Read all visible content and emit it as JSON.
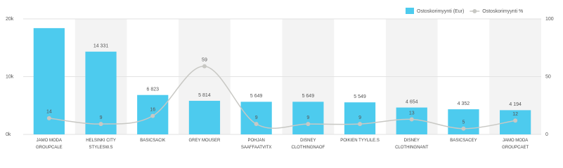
{
  "chart_data": {
    "type": "bar_line",
    "categories": [
      "JAMO MODA GROUPCALE",
      "HELSINKI CITY STYLESW.S",
      "BASICSACIK",
      "GREY MOUSER",
      "POHJAN SAAFFAATVITX",
      "DISNEY CLOTHINGNAOF",
      "POIKIEN TYYLILE.S",
      "DISNEY CLOTHINGNANT",
      "BASICSACEY",
      "JAMO MODA GROUPCAET"
    ],
    "series": [
      {
        "name": "Ostoskorimyynti (Eur)",
        "color": "#4dcbee",
        "type": "bar",
        "values": [
          18400,
          14331,
          6823,
          5814,
          5649,
          5649,
          5549,
          4654,
          4352,
          4194
        ],
        "value_labels": [
          null,
          "14 331",
          "6 823",
          "5 814",
          "5 649",
          "5 649",
          "5 549",
          "4 654",
          "4 352",
          "4 194"
        ]
      },
      {
        "name": "Ostoskorimyynti %",
        "color": "#c8c8c4",
        "type": "line",
        "axis": "y2",
        "values": [
          14,
          9,
          16,
          59,
          9,
          9,
          9,
          13,
          5,
          12
        ]
      }
    ],
    "ylim": [
      0,
      20000
    ],
    "yticks": [
      {
        "value": 0,
        "label": "0k"
      },
      {
        "value": 10000,
        "label": "10k"
      },
      {
        "value": 20000,
        "label": "20k"
      }
    ],
    "y2lim": [
      0,
      100
    ],
    "y2ticks": [
      0,
      50,
      100
    ],
    "band_shading": true
  }
}
